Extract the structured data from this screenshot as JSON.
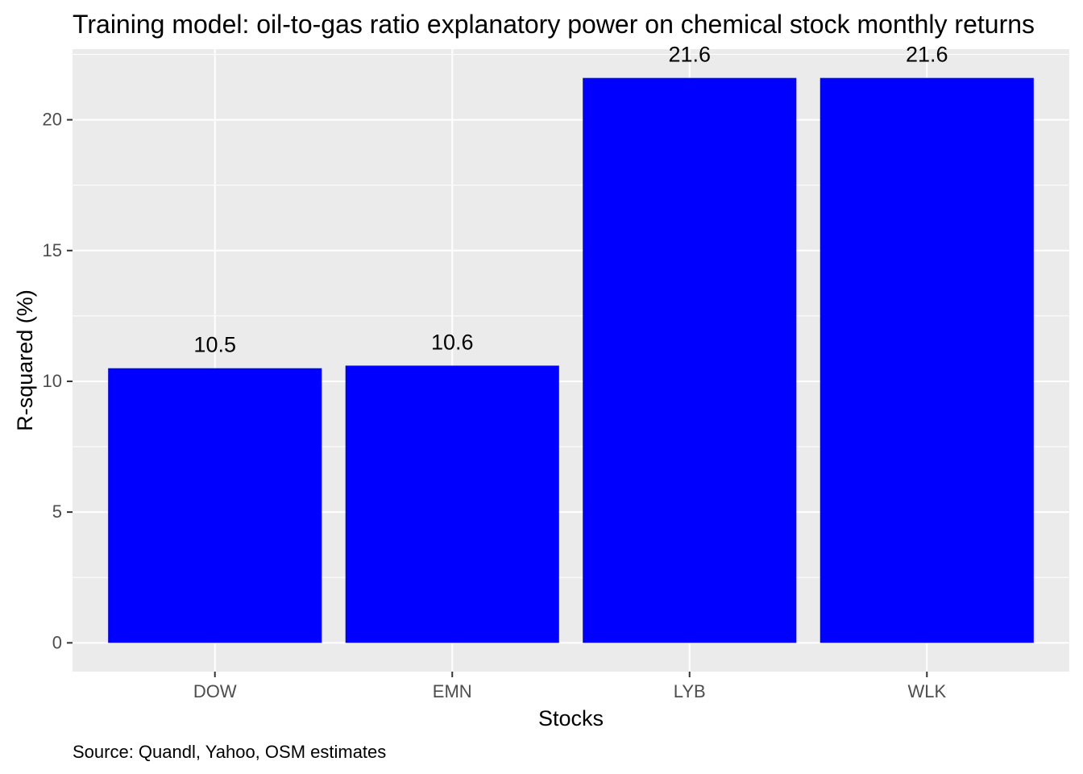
{
  "chart_data": {
    "type": "bar",
    "title": "Training model: oil-to-gas ratio explanatory power on chemical stock monthly returns",
    "xlabel": "Stocks",
    "ylabel": "R-squared (%)",
    "caption": "Source: Quandl, Yahoo, OSM estimates",
    "categories": [
      "DOW",
      "EMN",
      "LYB",
      "WLK"
    ],
    "values": [
      10.5,
      10.6,
      21.6,
      21.6
    ],
    "data_labels": [
      "10.5",
      "10.6",
      "21.6",
      "21.6"
    ],
    "ylim": [
      -1.1,
      22.7
    ],
    "y_ticks": [
      0,
      5,
      10,
      15,
      20
    ],
    "y_tick_labels": [
      "0",
      "5",
      "10",
      "15",
      "20"
    ],
    "grid": true,
    "legend": "none",
    "colors": {
      "bar": "#0000ff",
      "panel_background": "#ebebeb",
      "grid": "#ffffff",
      "text": "#000000",
      "tick_text": "#4d4d4d",
      "tick_mark": "#333333"
    }
  }
}
